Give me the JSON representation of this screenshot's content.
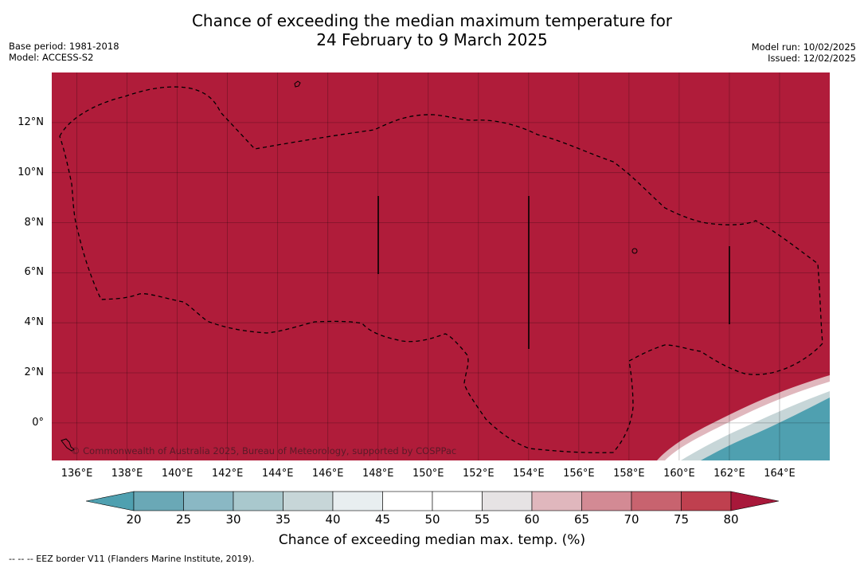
{
  "title": {
    "line1": "Chance of exceeding the median maximum temperature for",
    "line2": "24 February to 9 March 2025"
  },
  "meta_left": {
    "base_period": "Base period: 1981-2018",
    "model": "Model: ACCESS-S2"
  },
  "meta_right": {
    "model_run": "Model run: 10/02/2025",
    "issued": "Issued: 12/02/2025"
  },
  "map": {
    "extent": {
      "lon": [
        135,
        166
      ],
      "lat": [
        -1.5,
        14
      ]
    },
    "base_color": "#b01c3a",
    "grid": true,
    "attribution": "© Commonwealth of Australia 2025, Bureau of Meteorology, supported by COSPPac",
    "lat_ticks": [
      "12°N",
      "10°N",
      "8°N",
      "6°N",
      "4°N",
      "2°N",
      "0°"
    ],
    "lat_tick_values": [
      12,
      10,
      8,
      6,
      4,
      2,
      0
    ],
    "lon_ticks": [
      "136°E",
      "138°E",
      "140°E",
      "142°E",
      "144°E",
      "146°E",
      "148°E",
      "150°E",
      "152°E",
      "154°E",
      "156°E",
      "158°E",
      "160°E",
      "162°E",
      "164°E"
    ],
    "lon_tick_values": [
      136,
      138,
      140,
      142,
      144,
      146,
      148,
      150,
      152,
      154,
      156,
      158,
      160,
      162,
      164
    ]
  },
  "colorbar": {
    "labels": [
      "20",
      "25",
      "30",
      "35",
      "40",
      "45",
      "50",
      "55",
      "60",
      "65",
      "70",
      "75",
      "80"
    ],
    "colors": [
      "#6aa8b6",
      "#8ab8c4",
      "#a9c8cd",
      "#c7d6d8",
      "#e8eef0",
      "#ffffff",
      "#ffffff",
      "#e6e3e4",
      "#e0b7bd",
      "#d38a94",
      "#c8636f",
      "#bf404f"
    ],
    "under_color": "#4fa0b0",
    "over_color": "#a8183a",
    "title": "Chance of exceeding median max. temp. (%)"
  },
  "footnote": "--  --  -- EEZ border V11 (Flanders Marine Institute, 2019)."
}
